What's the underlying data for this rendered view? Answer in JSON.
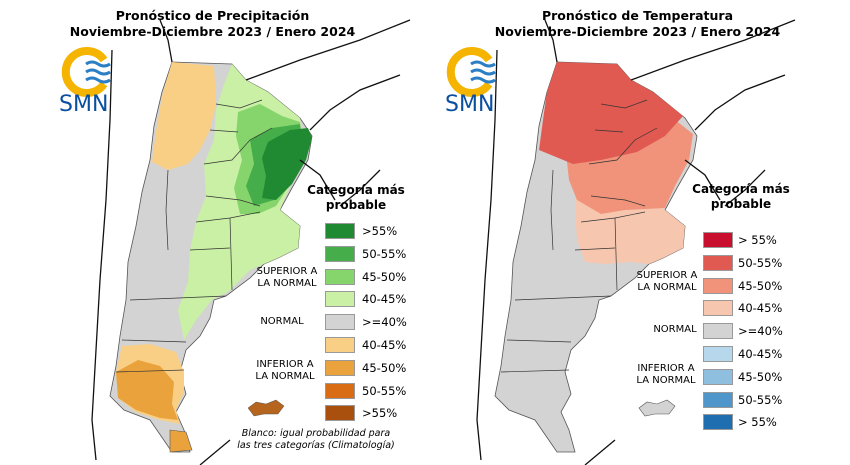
{
  "precipitation": {
    "title_line1": "Pronóstico de Precipitación",
    "title_line2": "Noviembre-Diciembre 2023 / Enero 2024",
    "logo_text": "SMN",
    "legend_title_line1": "Categoría más",
    "legend_title_line2": "probable",
    "categories": {
      "superior_line1": "SUPERIOR A",
      "superior_line2": "LA NORMAL",
      "normal": "NORMAL",
      "inferior_line1": "INFERIOR A",
      "inferior_line2": "LA NORMAL"
    },
    "legend_items": [
      {
        "label": ">55%",
        "color": "#1f8a32"
      },
      {
        "label": "50-55%",
        "color": "#45ad4a"
      },
      {
        "label": "45-50%",
        "color": "#86d56c"
      },
      {
        "label": "40-45%",
        "color": "#c9f0a4"
      },
      {
        "label": ">=40%",
        "color": "#d3d3d3"
      },
      {
        "label": "40-45%",
        "color": "#f9cf86"
      },
      {
        "label": "45-50%",
        "color": "#eaa33c"
      },
      {
        "label": "50-55%",
        "color": "#d96d16"
      },
      {
        "label": ">55%",
        "color": "#a9500f"
      }
    ],
    "note_line1": "Blanco: igual probabilidad para",
    "note_line2": "las tres categorías (Climatología)"
  },
  "temperature": {
    "title_line1": "Pronóstico de Temperatura",
    "title_line2": "Noviembre-Diciembre 2023 / Enero 2024",
    "logo_text": "SMN",
    "legend_title_line1": "Categoría más",
    "legend_title_line2": "probable",
    "categories": {
      "superior_line1": "SUPERIOR A",
      "superior_line2": "LA NORMAL",
      "normal": "NORMAL",
      "inferior_line1": "INFERIOR A",
      "inferior_line2": "LA NORMAL"
    },
    "legend_items": [
      {
        "label": "> 55%",
        "color": "#c8102e"
      },
      {
        "label": "50-55%",
        "color": "#e05a52"
      },
      {
        "label": "45-50%",
        "color": "#f0937a"
      },
      {
        "label": "40-45%",
        "color": "#f6c7ae"
      },
      {
        "label": ">=40%",
        "color": "#d3d3d3"
      },
      {
        "label": "40-45%",
        "color": "#b7d8ec"
      },
      {
        "label": "45-50%",
        "color": "#8ebfdf"
      },
      {
        "label": "50-55%",
        "color": "#4f97cb"
      },
      {
        "label": "> 55%",
        "color": "#1f6fb0"
      }
    ]
  }
}
